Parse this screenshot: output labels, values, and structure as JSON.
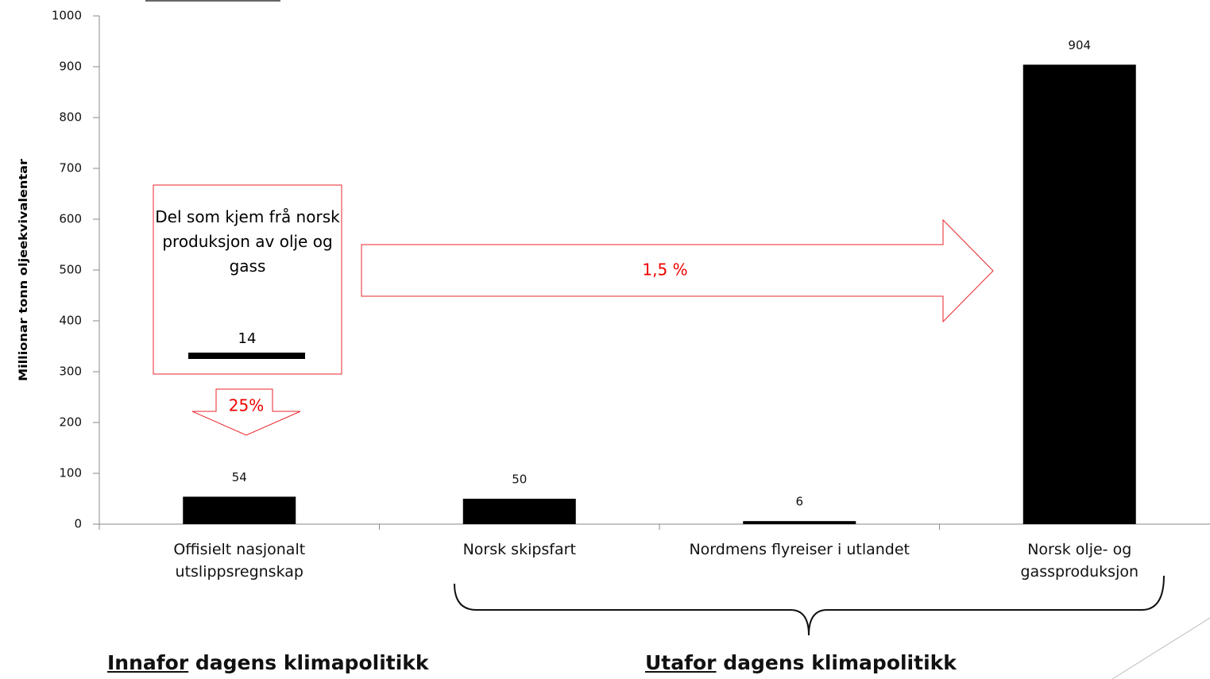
{
  "chart_data": {
    "type": "bar",
    "y_label": "Millionar tonn oljeekvivalentar",
    "categories": [
      "Offisielt nasjonalt utslippsregnskap",
      "Norsk skipsfart",
      "Nordmens flyreiser i utlandet",
      "Norsk olje- og gassproduksjon"
    ],
    "values": [
      54,
      50,
      6,
      904
    ],
    "color": "#000000",
    "ylim": [
      0,
      1000
    ],
    "yticks": [
      0,
      100,
      200,
      300,
      400,
      500,
      600,
      700,
      800,
      900,
      1000
    ],
    "inset": {
      "text": "Del som kjem frå norsk produksjon av olje og gass",
      "value": 14
    },
    "annotations": {
      "right_arrow": "1,5 %",
      "down_arrow": "25%"
    },
    "groups": [
      {
        "underlined": "Innafor",
        "rest": "dagens klimapolitikk"
      },
      {
        "underlined": "Utafor",
        "rest": "dagens klimapolitikk"
      }
    ]
  }
}
